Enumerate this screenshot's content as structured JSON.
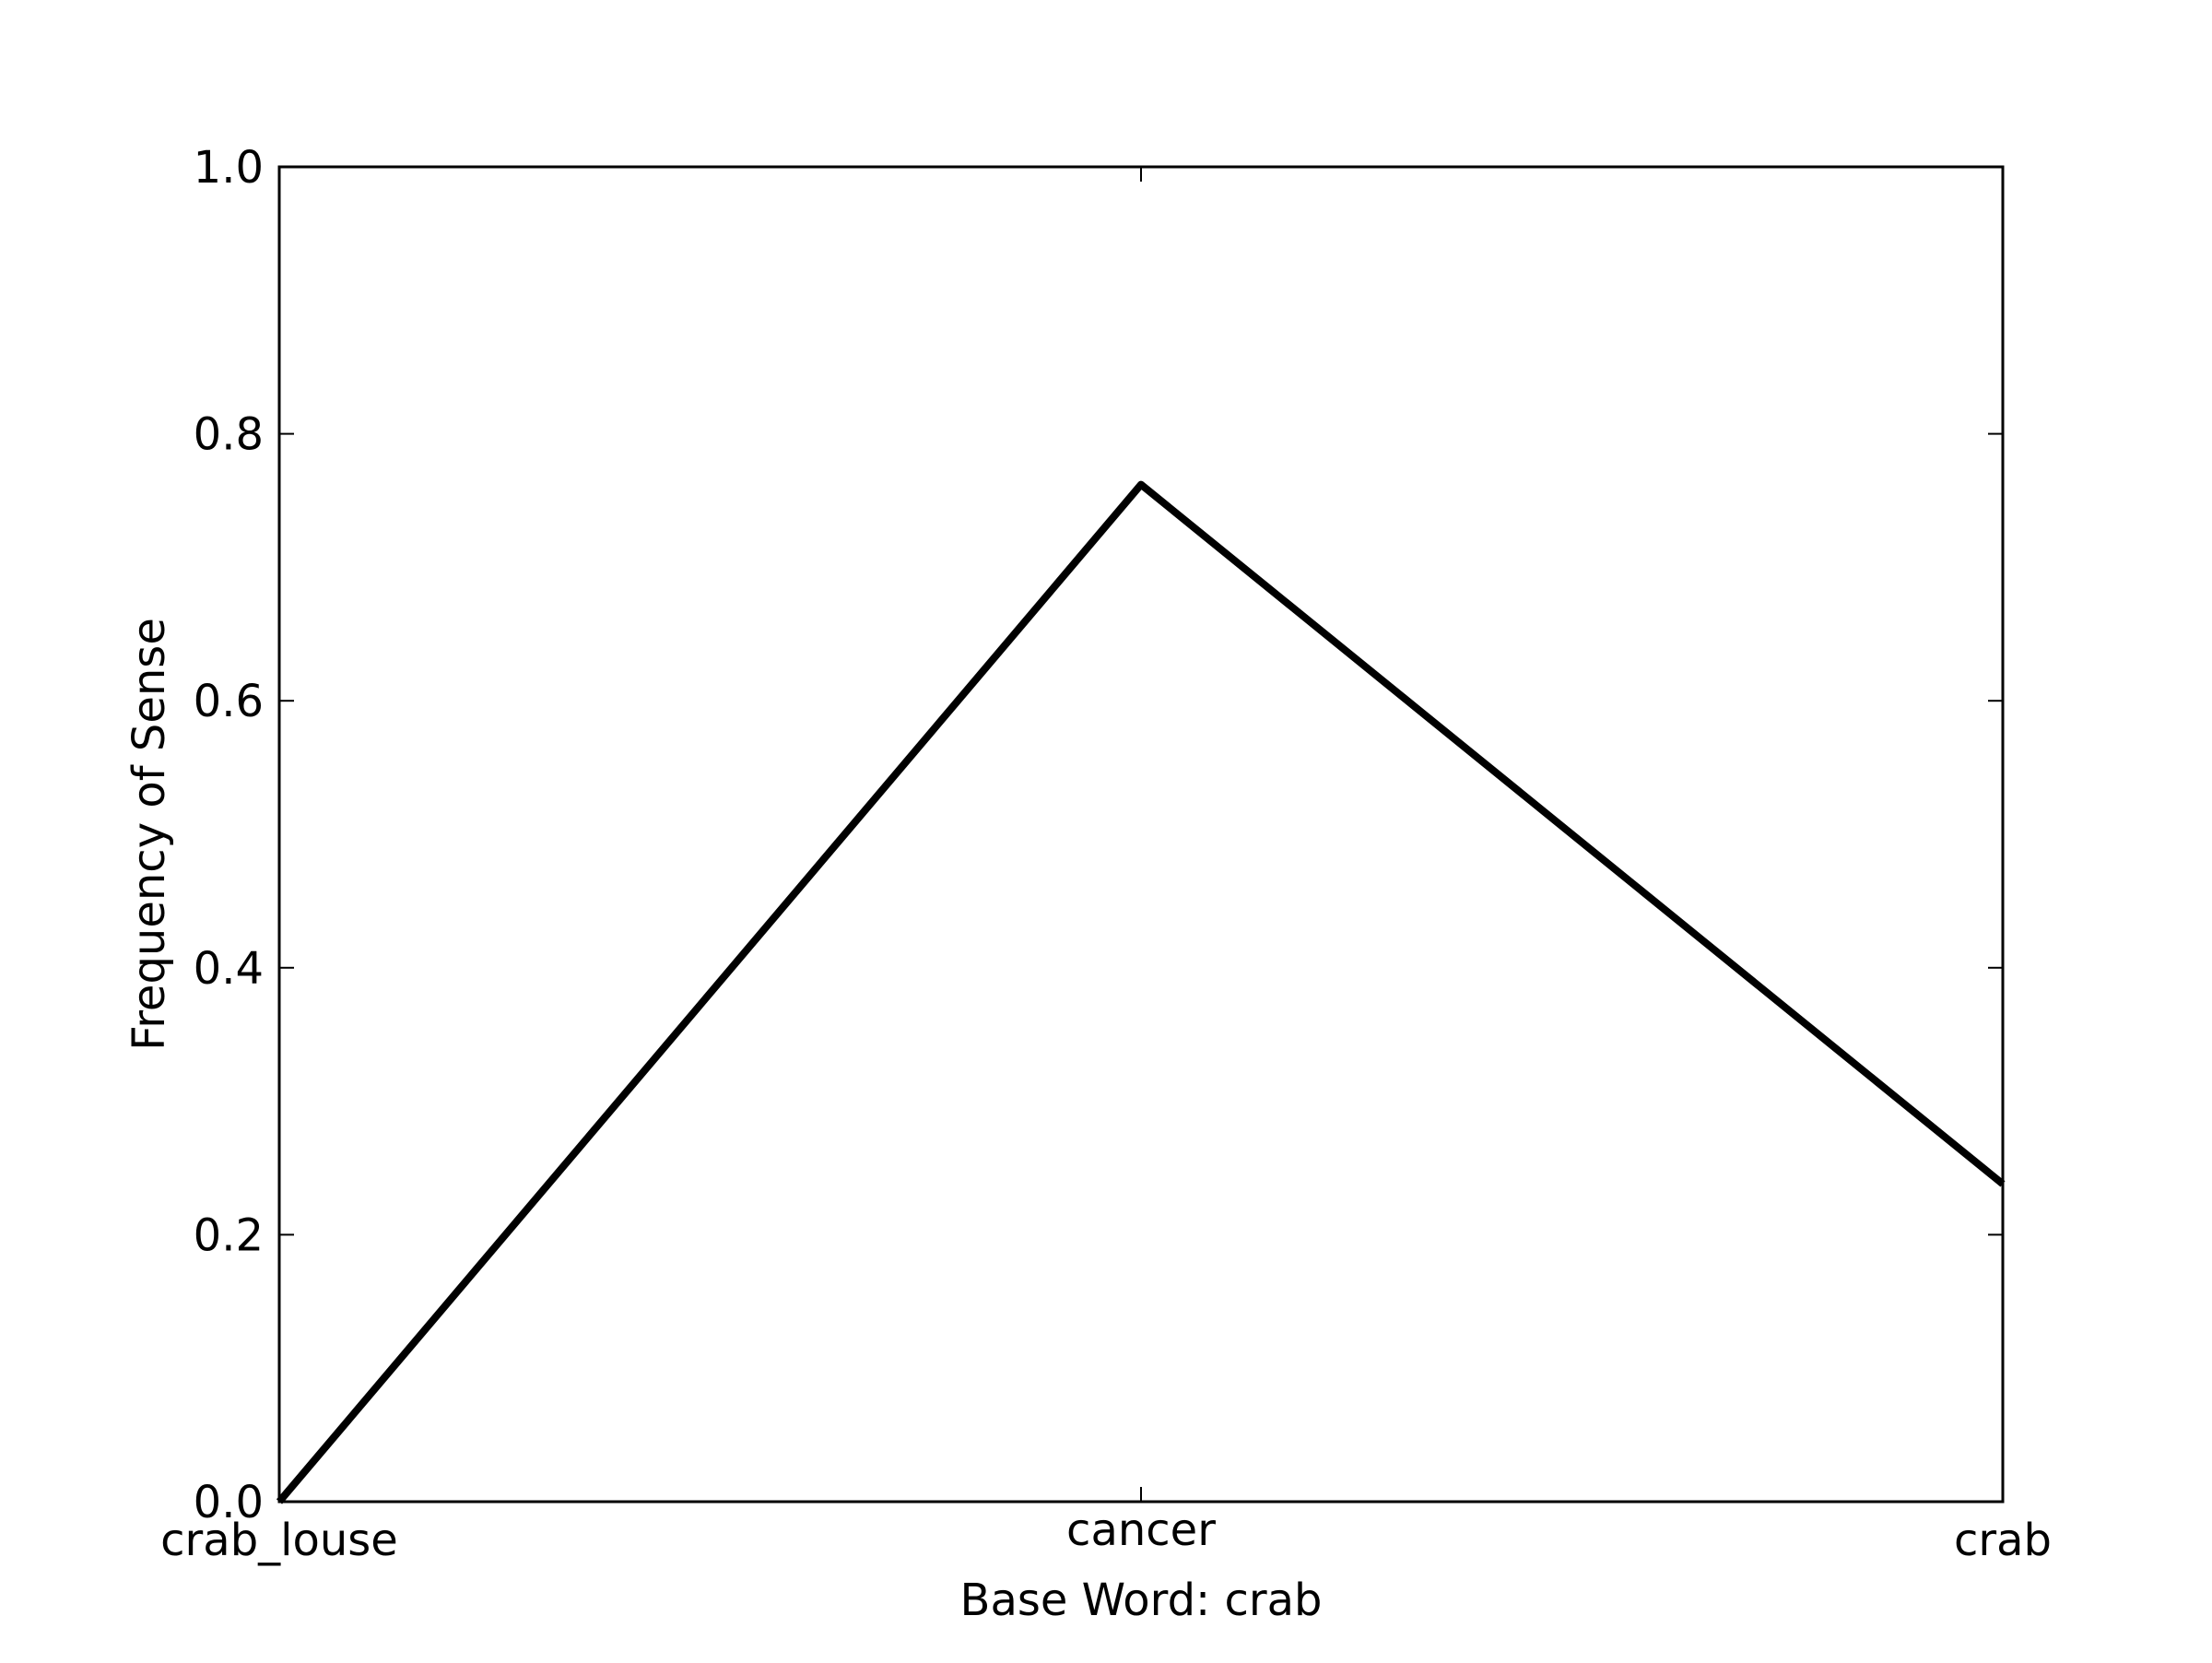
{
  "chart_data": {
    "type": "line",
    "title": "",
    "xlabel": "Base Word: crab",
    "ylabel": "Frequency of Sense",
    "categories": [
      "crab_louse",
      "cancer",
      "crab"
    ],
    "series": [
      {
        "values": [
          0.0,
          0.762,
          0.238
        ]
      }
    ],
    "ylim": [
      0,
      1
    ],
    "yticks": [
      "0.0",
      "0.2",
      "0.4",
      "0.6",
      "0.8",
      "1.0"
    ],
    "grid": false,
    "line_color": "#000000"
  }
}
